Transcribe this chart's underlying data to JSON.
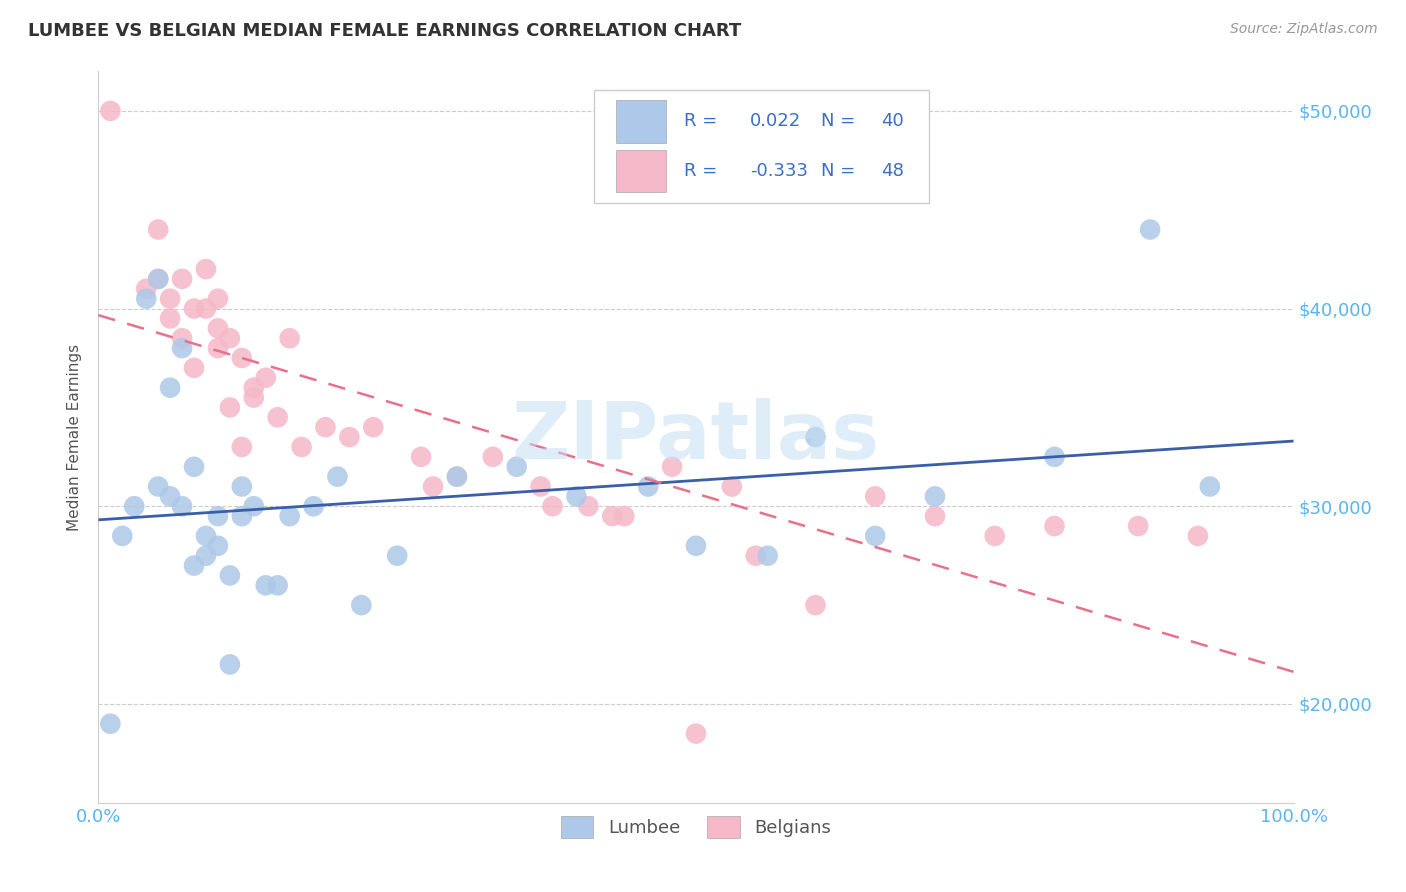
{
  "title": "LUMBEE VS BELGIAN MEDIAN FEMALE EARNINGS CORRELATION CHART",
  "source": "Source: ZipAtlas.com",
  "ylabel": "Median Female Earnings",
  "xlim": [
    0.0,
    1.0
  ],
  "ylim": [
    15000,
    52000
  ],
  "ytick_positions": [
    20000,
    30000,
    40000,
    50000
  ],
  "ytick_labels": [
    "$20,000",
    "$30,000",
    "$40,000",
    "$50,000"
  ],
  "lumbee_R": 0.022,
  "lumbee_N": 40,
  "belgian_R": -0.333,
  "belgian_N": 48,
  "lumbee_color": "#adc8e8",
  "belgian_color": "#f5b8c8",
  "lumbee_line_color": "#3a5fa8",
  "belgian_line_color": "#e8708a",
  "title_color": "#333333",
  "axis_label_color": "#555555",
  "tick_color_right": "#5ab4f0",
  "tick_color_bottom": "#5ab4f0",
  "background_color": "#ffffff",
  "grid_color": "#cccccc",
  "watermark_color": "#c5dff5",
  "legend_text_color": "#3a6fc4",
  "lumbee_scatter_x": [
    0.01,
    0.02,
    0.03,
    0.04,
    0.05,
    0.05,
    0.06,
    0.06,
    0.07,
    0.07,
    0.08,
    0.08,
    0.09,
    0.09,
    0.1,
    0.1,
    0.11,
    0.11,
    0.12,
    0.12,
    0.13,
    0.14,
    0.15,
    0.16,
    0.18,
    0.2,
    0.22,
    0.25,
    0.3,
    0.35,
    0.4,
    0.46,
    0.5,
    0.56,
    0.6,
    0.65,
    0.7,
    0.8,
    0.88,
    0.93
  ],
  "lumbee_scatter_y": [
    19000,
    28500,
    30000,
    40500,
    41500,
    31000,
    30500,
    36000,
    38000,
    30000,
    32000,
    27000,
    28500,
    27500,
    29500,
    28000,
    22000,
    26500,
    29500,
    31000,
    30000,
    26000,
    26000,
    29500,
    30000,
    31500,
    25000,
    27500,
    31500,
    32000,
    30500,
    31000,
    28000,
    27500,
    33500,
    28500,
    30500,
    32500,
    44000,
    31000
  ],
  "belgian_scatter_x": [
    0.01,
    0.04,
    0.05,
    0.05,
    0.06,
    0.06,
    0.07,
    0.07,
    0.08,
    0.08,
    0.09,
    0.09,
    0.1,
    0.1,
    0.1,
    0.11,
    0.11,
    0.12,
    0.12,
    0.13,
    0.13,
    0.14,
    0.15,
    0.16,
    0.17,
    0.19,
    0.21,
    0.23,
    0.27,
    0.28,
    0.3,
    0.33,
    0.37,
    0.38,
    0.41,
    0.43,
    0.44,
    0.48,
    0.53,
    0.55,
    0.6,
    0.65,
    0.7,
    0.75,
    0.8,
    0.87,
    0.92,
    0.5
  ],
  "belgian_scatter_y": [
    50000,
    41000,
    41500,
    44000,
    40500,
    39500,
    41500,
    38500,
    40000,
    37000,
    42000,
    40000,
    39000,
    38000,
    40500,
    35000,
    38500,
    37500,
    33000,
    35500,
    36000,
    36500,
    34500,
    38500,
    33000,
    34000,
    33500,
    34000,
    32500,
    31000,
    31500,
    32500,
    31000,
    30000,
    30000,
    29500,
    29500,
    32000,
    31000,
    27500,
    25000,
    30500,
    29500,
    28500,
    29000,
    29000,
    28500,
    18500
  ]
}
